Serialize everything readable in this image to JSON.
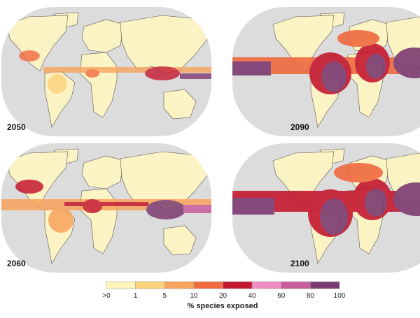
{
  "maps": [
    {
      "label": "2050"
    },
    {
      "label": "2060"
    },
    {
      "label": "2090"
    },
    {
      "label": "2100"
    }
  ],
  "legend": {
    "ticks": [
      ">0",
      "1",
      "5",
      "10",
      "20",
      "40",
      "60",
      "80",
      "100"
    ],
    "colors": [
      "#fdf6b8",
      "#fcd37a",
      "#f7a35c",
      "#ef6a3f",
      "#c4182f",
      "#f08cc2",
      "#c95c9c",
      "#7c3a70"
    ],
    "title": "% species exposed"
  }
}
